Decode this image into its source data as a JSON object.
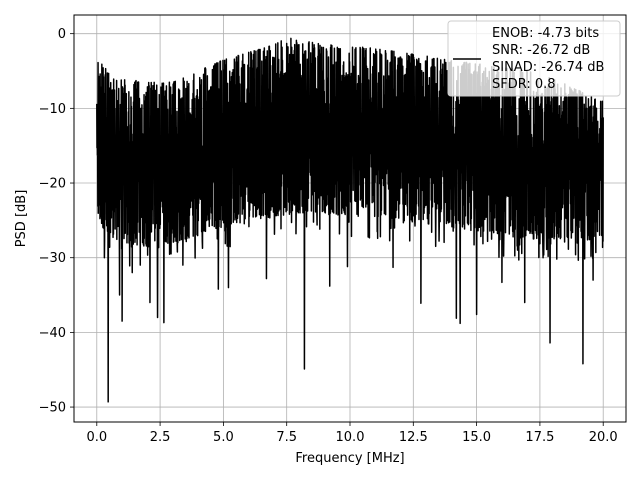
{
  "chart_data": {
    "type": "line",
    "xlabel": "Frequency [MHz]",
    "ylabel": "PSD [dB]",
    "xlim": [
      -0.9,
      20.9
    ],
    "ylim": [
      -52,
      2.5
    ],
    "xticks": [
      0.0,
      2.5,
      5.0,
      7.5,
      10.0,
      12.5,
      15.0,
      17.5,
      20.0
    ],
    "xtick_labels": [
      "0.0",
      "2.5",
      "5.0",
      "7.5",
      "10.0",
      "12.5",
      "15.0",
      "17.5",
      "20.0"
    ],
    "yticks": [
      0,
      -10,
      -20,
      -30,
      -40,
      -50
    ],
    "ytick_labels": [
      "0",
      "−10",
      "−20",
      "−30",
      "−40",
      "−50"
    ],
    "grid": true,
    "legend_position": "top-right",
    "series": [
      {
        "name": "ENOB: -4.73 bits\nSNR: -26.72 dB\nSINAD: -26.74 dB\nSFDR: 0.8",
        "legend_lines": [
          "ENOB: -4.73 bits",
          "SNR: -26.72 dB",
          "SINAD: -26.74 dB",
          "SFDR: 0.8"
        ],
        "color": "#000000",
        "upper_envelope": {
          "x": [
            0.0,
            0.05,
            0.5,
            1.0,
            2.0,
            3.0,
            4.0,
            5.0,
            6.0,
            7.0,
            7.5,
            8.0,
            9.0,
            10.0,
            11.0,
            12.0,
            13.0,
            14.0,
            15.0,
            16.0,
            17.0,
            18.0,
            19.0,
            20.0
          ],
          "y": [
            -8.0,
            -3.0,
            -5.5,
            -6.0,
            -6.5,
            -6.5,
            -5.0,
            -3.5,
            -2.5,
            -1.5,
            -0.5,
            -0.8,
            -1.5,
            -1.5,
            -2.0,
            -2.5,
            -3.0,
            -3.5,
            -4.0,
            -4.5,
            -5.0,
            -6.0,
            -7.5,
            -9.0
          ]
        },
        "lower_envelope": {
          "x": [
            0.0,
            0.5,
            1.0,
            2.0,
            3.0,
            4.0,
            5.0,
            6.0,
            7.0,
            8.0,
            9.0,
            10.0,
            11.0,
            12.0,
            13.0,
            14.0,
            15.0,
            16.0,
            17.0,
            18.0,
            19.0,
            20.0
          ],
          "y": [
            -25.0,
            -27.0,
            -28.0,
            -28.5,
            -28.0,
            -27.0,
            -26.0,
            -25.0,
            -24.5,
            -24.0,
            -24.0,
            -24.5,
            -24.5,
            -25.0,
            -25.5,
            -26.0,
            -26.5,
            -27.0,
            -27.5,
            -27.5,
            -27.5,
            -27.0
          ]
        },
        "dips": [
          {
            "x": 0.3,
            "y": -30.0
          },
          {
            "x": 0.45,
            "y": -49.3
          },
          {
            "x": 0.9,
            "y": -35.0
          },
          {
            "x": 1.0,
            "y": -38.5
          },
          {
            "x": 1.4,
            "y": -32.0
          },
          {
            "x": 2.1,
            "y": -36.0
          },
          {
            "x": 2.4,
            "y": -38.0
          },
          {
            "x": 2.65,
            "y": -38.7
          },
          {
            "x": 3.4,
            "y": -31.0
          },
          {
            "x": 4.8,
            "y": -34.2
          },
          {
            "x": 5.2,
            "y": -34.0
          },
          {
            "x": 6.7,
            "y": -32.8
          },
          {
            "x": 8.2,
            "y": -44.9
          },
          {
            "x": 9.2,
            "y": -33.8
          },
          {
            "x": 9.9,
            "y": -31.2
          },
          {
            "x": 11.7,
            "y": -31.3
          },
          {
            "x": 12.8,
            "y": -36.1
          },
          {
            "x": 14.2,
            "y": -38.1
          },
          {
            "x": 14.35,
            "y": -38.8
          },
          {
            "x": 15.0,
            "y": -37.6
          },
          {
            "x": 16.0,
            "y": -33.3
          },
          {
            "x": 16.9,
            "y": -36.0
          },
          {
            "x": 17.9,
            "y": -41.4
          },
          {
            "x": 19.2,
            "y": -44.2
          },
          {
            "x": 19.6,
            "y": -33.0
          }
        ]
      }
    ]
  }
}
